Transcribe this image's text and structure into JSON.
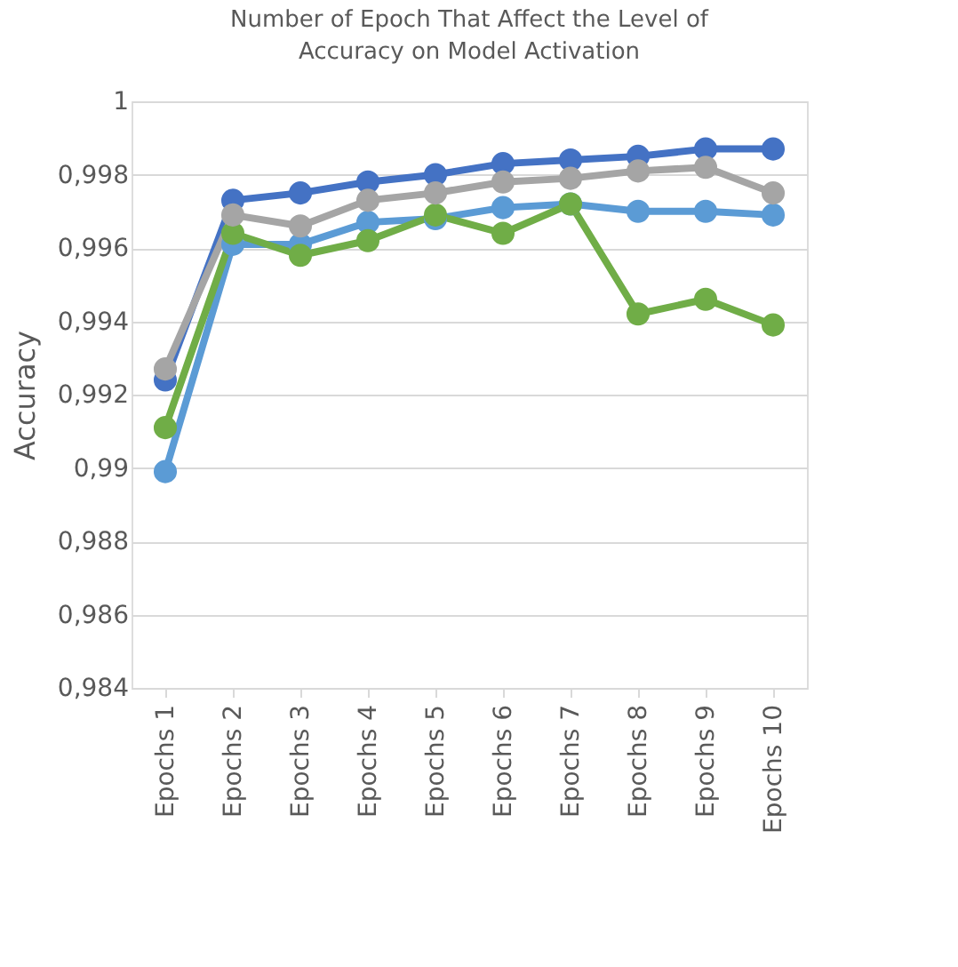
{
  "chart_data": {
    "type": "line",
    "title": "Number of Epoch That Affect the Level of Accuracy on Model Activation",
    "ylabel": "Accuracy",
    "categories": [
      "Epochs 1",
      "Epochs 2",
      "Epochs 3",
      "Epochs 4",
      "Epochs 5",
      "Epochs 6",
      "Epochs 7",
      "Epochs 8",
      "Epochs 9",
      "Epochs 10"
    ],
    "series": [
      {
        "color": "#4472c4",
        "values": [
          0.9924,
          0.9973,
          0.9975,
          0.9978,
          0.998,
          0.9983,
          0.9984,
          0.9985,
          0.9987,
          0.9987
        ]
      },
      {
        "color": "#5b9bd5",
        "values": [
          0.9899,
          0.9961,
          0.9961,
          0.9967,
          0.9968,
          0.9971,
          0.9972,
          0.997,
          0.997,
          0.9969
        ]
      },
      {
        "color": "#70ad47",
        "values": [
          0.9911,
          0.9964,
          0.9958,
          0.9962,
          0.9969,
          0.9964,
          0.9972,
          0.9942,
          0.9946,
          0.9939
        ]
      },
      {
        "color": "#a5a5a5",
        "values": [
          0.9927,
          0.9969,
          0.9966,
          0.9973,
          0.9975,
          0.9978,
          0.9979,
          0.9981,
          0.9982,
          0.9975
        ]
      }
    ],
    "ylim": [
      0.984,
      1
    ],
    "yticks": [
      {
        "value": 0.984,
        "label": "0,984"
      },
      {
        "value": 0.986,
        "label": "0,986"
      },
      {
        "value": 0.988,
        "label": "0,988"
      },
      {
        "value": 0.99,
        "label": "0,99"
      },
      {
        "value": 0.992,
        "label": "0,992"
      },
      {
        "value": 0.994,
        "label": "0,994"
      },
      {
        "value": 0.996,
        "label": "0,996"
      },
      {
        "value": 0.998,
        "label": "0,998"
      },
      {
        "value": 1,
        "label": "1"
      }
    ],
    "grid": "y",
    "legend": false,
    "marker": "circle",
    "line_style": "solid"
  }
}
